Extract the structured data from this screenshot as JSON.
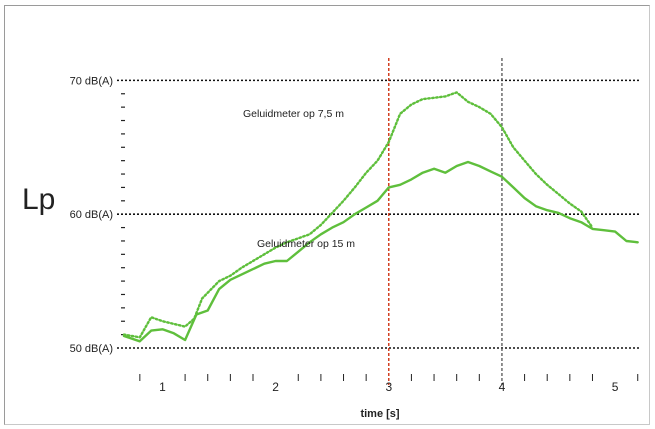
{
  "chart_data": {
    "type": "line",
    "ylabel": "Lp",
    "xlabel": "time [s]",
    "xlim": [
      0.66,
      5.22
    ],
    "ylim": [
      50,
      71
    ],
    "x_ticks": [
      "1",
      "2",
      "3",
      "4",
      "5"
    ],
    "y_ticks": [
      "50 dB(A)",
      "60 dB(A)",
      "70 dB(A)"
    ],
    "grid": "dotted horizontal lines at 50, 60 and 70 dB(A)",
    "markers": [
      {
        "x": 3.0,
        "color": "#cc2200",
        "style": "dashed"
      },
      {
        "x": 4.0,
        "color": "#555555",
        "style": "dashed"
      }
    ],
    "annotations": [
      "Geluidmeter op 7,5 m",
      "Geluidmeter op 15 m"
    ],
    "series": [
      {
        "label": "Geluidmeter op 7,5 m",
        "color": "#5fbf3c",
        "style": "dotted",
        "x": [
          0.66,
          0.8,
          0.9,
          1.0,
          1.1,
          1.2,
          1.28,
          1.35,
          1.5,
          1.6,
          1.7,
          1.8,
          1.9,
          2.0,
          2.1,
          2.2,
          2.3,
          2.4,
          2.5,
          2.6,
          2.7,
          2.8,
          2.9,
          3.0,
          3.1,
          3.2,
          3.3,
          3.4,
          3.5,
          3.6,
          3.7,
          3.8,
          3.9,
          4.0,
          4.1,
          4.2,
          4.3,
          4.4,
          4.5,
          4.6,
          4.7,
          4.8
        ],
        "y": [
          51.0,
          50.8,
          52.3,
          52.0,
          51.8,
          51.6,
          52.2,
          53.7,
          55.0,
          55.4,
          56.0,
          56.5,
          57.0,
          57.5,
          57.9,
          58.2,
          58.5,
          59.2,
          60.1,
          61.0,
          62.0,
          63.1,
          64.0,
          65.4,
          67.5,
          68.2,
          68.6,
          68.7,
          68.8,
          69.1,
          68.4,
          68.0,
          67.5,
          66.5,
          65.0,
          64.0,
          63.0,
          62.2,
          61.5,
          60.8,
          60.2,
          59.0
        ]
      },
      {
        "label": "Geluidmeter op 15 m",
        "color": "#5fbf3c",
        "style": "solid",
        "x": [
          0.66,
          0.8,
          0.9,
          1.0,
          1.1,
          1.2,
          1.3,
          1.4,
          1.5,
          1.6,
          1.7,
          1.8,
          1.9,
          2.0,
          2.1,
          2.2,
          2.3,
          2.4,
          2.5,
          2.6,
          2.7,
          2.8,
          2.9,
          3.0,
          3.1,
          3.2,
          3.3,
          3.4,
          3.5,
          3.6,
          3.7,
          3.8,
          3.9,
          4.0,
          4.1,
          4.2,
          4.3,
          4.4,
          4.5,
          4.6,
          4.7,
          4.8,
          4.9,
          5.0,
          5.1,
          5.2
        ],
        "y": [
          50.9,
          50.5,
          51.3,
          51.4,
          51.1,
          50.6,
          52.5,
          52.8,
          54.4,
          55.1,
          55.5,
          55.9,
          56.3,
          56.5,
          56.5,
          57.2,
          57.9,
          58.5,
          59.0,
          59.4,
          60.0,
          60.5,
          61.0,
          62.0,
          62.2,
          62.6,
          63.1,
          63.4,
          63.1,
          63.6,
          63.9,
          63.6,
          63.2,
          62.8,
          62.0,
          61.2,
          60.6,
          60.3,
          60.1,
          59.7,
          59.4,
          58.9,
          58.8,
          58.7,
          58.0,
          57.9
        ]
      }
    ]
  }
}
